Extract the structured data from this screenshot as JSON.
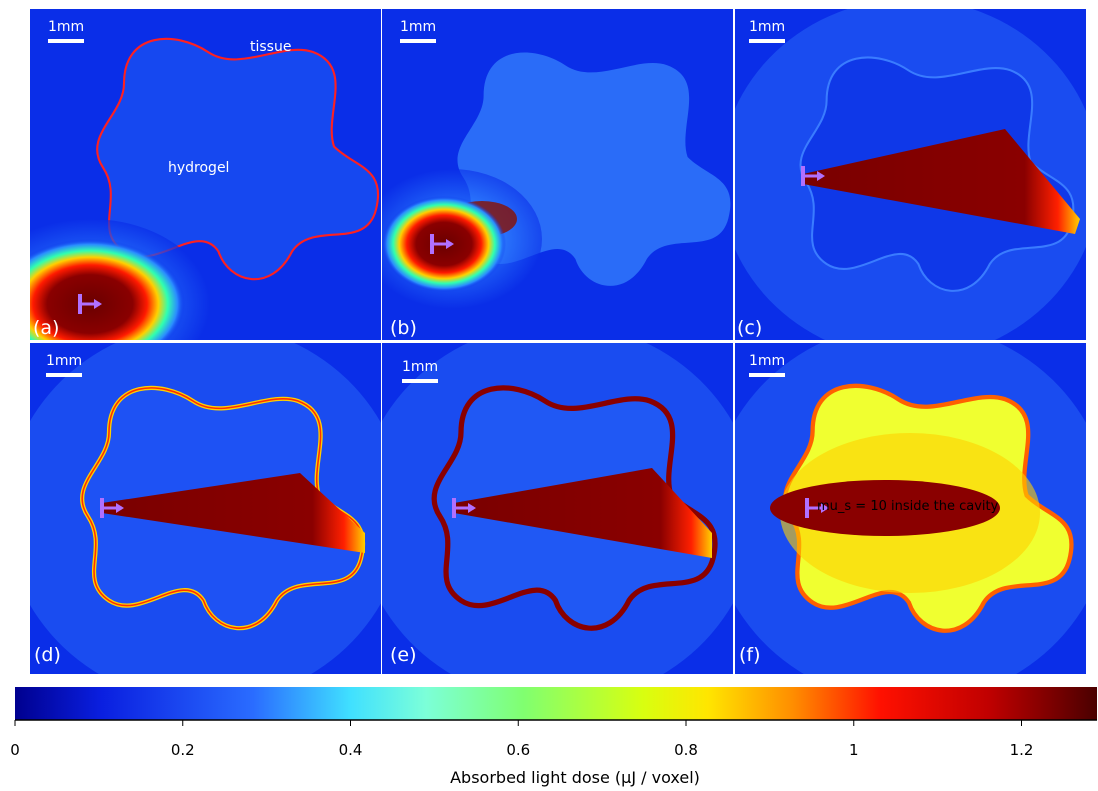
{
  "panels": [
    {
      "label": "(a)",
      "scale_bar": "1mm",
      "annotations": [
        "tissue",
        "hydrogel"
      ]
    },
    {
      "label": "(b)",
      "scale_bar": "1mm"
    },
    {
      "label": "(c)",
      "scale_bar": "1mm"
    },
    {
      "label": "(d)",
      "scale_bar": "1mm"
    },
    {
      "label": "(e)",
      "scale_bar": "1mm"
    },
    {
      "label": "(f)",
      "scale_bar": "1mm",
      "annotations": [
        "mu_s = 10 inside the cavity"
      ]
    }
  ],
  "colorbar": {
    "title": "Absorbed light dose (μJ / voxel)",
    "lim": [
      0,
      1.29
    ],
    "ticks": [
      0,
      0.2,
      0.4,
      0.6,
      0.8,
      1,
      1.2
    ]
  }
}
